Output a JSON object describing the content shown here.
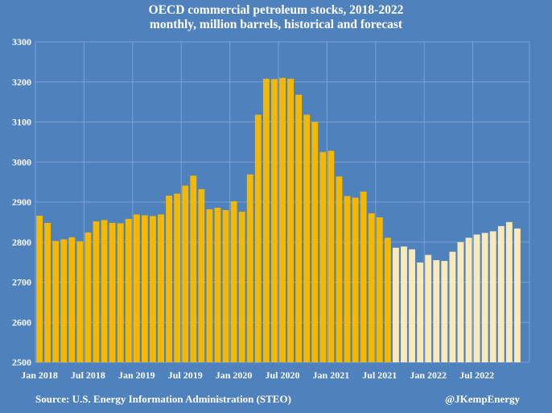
{
  "chart_data": {
    "type": "bar",
    "title": "OECD commercial petroleum stocks, 2018-2022",
    "subtitle": "monthly, million barrels, historical and forecast",
    "source": "Source: U.S. Energy Information Administration (STEO)",
    "credit": "@JKempEnergy",
    "ylim": [
      2500,
      3300
    ],
    "yticks": [
      2500,
      2600,
      2700,
      2800,
      2900,
      3000,
      3100,
      3200,
      3300
    ],
    "xticks": [
      {
        "index": 0,
        "label": "Jan 2018"
      },
      {
        "index": 6,
        "label": "Jul 2018"
      },
      {
        "index": 12,
        "label": "Jan 2019"
      },
      {
        "index": 18,
        "label": "Jul 2019"
      },
      {
        "index": 24,
        "label": "Jan 2020"
      },
      {
        "index": 30,
        "label": "Jul 2020"
      },
      {
        "index": 36,
        "label": "Jan 2021"
      },
      {
        "index": 42,
        "label": "Jul 2021"
      },
      {
        "index": 48,
        "label": "Jan 2022"
      },
      {
        "index": 54,
        "label": "Jul 2022"
      }
    ],
    "grid": true,
    "colors": {
      "historical": "#f5b800",
      "forecast": "#fbe9b7",
      "grid": "#7aa2d6",
      "background": "#4f81bd"
    },
    "categories": [
      "Jan 2018",
      "Feb 2018",
      "Mar 2018",
      "Apr 2018",
      "May 2018",
      "Jun 2018",
      "Jul 2018",
      "Aug 2018",
      "Sep 2018",
      "Oct 2018",
      "Nov 2018",
      "Dec 2018",
      "Jan 2019",
      "Feb 2019",
      "Mar 2019",
      "Apr 2019",
      "May 2019",
      "Jun 2019",
      "Jul 2019",
      "Aug 2019",
      "Sep 2019",
      "Oct 2019",
      "Nov 2019",
      "Dec 2019",
      "Jan 2020",
      "Feb 2020",
      "Mar 2020",
      "Apr 2020",
      "May 2020",
      "Jun 2020",
      "Jul 2020",
      "Aug 2020",
      "Sep 2020",
      "Oct 2020",
      "Nov 2020",
      "Dec 2020",
      "Jan 2021",
      "Feb 2021",
      "Mar 2021",
      "Apr 2021",
      "May 2021",
      "Jun 2021",
      "Jul 2021",
      "Aug 2021",
      "Sep 2021",
      "Oct 2021",
      "Nov 2021",
      "Dec 2021",
      "Jan 2022",
      "Feb 2022",
      "Mar 2022",
      "Apr 2022",
      "May 2022",
      "Jun 2022",
      "Jul 2022",
      "Aug 2022",
      "Sep 2022",
      "Oct 2022",
      "Nov 2022",
      "Dec 2022"
    ],
    "series": [
      {
        "values": [
          2866,
          2848,
          2803,
          2807,
          2812,
          2802,
          2824,
          2852,
          2855,
          2848,
          2847,
          2858,
          2869,
          2867,
          2865,
          2869,
          2916,
          2921,
          2941,
          2966,
          2932,
          2882,
          2886,
          2880,
          2902,
          2876,
          2969,
          3118,
          3208,
          3207,
          3210,
          3208,
          3168,
          3118,
          3100,
          3025,
          3028,
          2964,
          2915,
          2911,
          2926,
          2872,
          2862,
          2811,
          2786,
          2789,
          2782,
          2749,
          2768,
          2755,
          2753,
          2776,
          2800,
          2811,
          2819,
          2823,
          2827,
          2840,
          2850,
          2834
        ],
        "forecast_from_index": 44
      }
    ]
  }
}
